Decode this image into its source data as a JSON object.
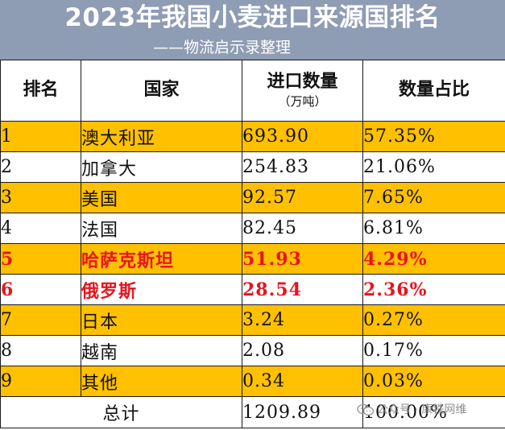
{
  "title": "2023年我国小麦进口来源国排名",
  "subtitle": "——物流启示录整理",
  "columns": {
    "rank": "排名",
    "country": "国家",
    "qty": "进口数量",
    "qty_unit": "（万吨）",
    "pct": "数量占比"
  },
  "rows": [
    {
      "rank": "1",
      "country": "澳大利亚",
      "qty": "693.90",
      "pct": "57.35%"
    },
    {
      "rank": "2",
      "country": "加拿大",
      "qty": "254.83",
      "pct": "21.06%"
    },
    {
      "rank": "3",
      "country": "美国",
      "qty": "92.57",
      "pct": "7.65%"
    },
    {
      "rank": "4",
      "country": "法国",
      "qty": "82.45",
      "pct": "6.81%"
    },
    {
      "rank": "5",
      "country": "哈萨克斯坦",
      "qty": "51.93",
      "pct": "4.29%"
    },
    {
      "rank": "6",
      "country": "俄罗斯",
      "qty": "28.54",
      "pct": "2.36%"
    },
    {
      "rank": "7",
      "country": "日本",
      "qty": "3.24",
      "pct": "0.27%"
    },
    {
      "rank": "8",
      "country": "越南",
      "qty": "2.08",
      "pct": "0.17%"
    },
    {
      "rank": "9",
      "country": "其他",
      "qty": "0.34",
      "pct": "0.03%"
    }
  ],
  "total": {
    "label": "总计",
    "qty": "1209.89",
    "pct": "100.00%"
  },
  "watermark": "公众号 · 康铁网维",
  "colors": {
    "header_bg": "#8e9cb4",
    "highlight_row": "#ffc000",
    "emphasis_text": "#e8141e"
  },
  "icons": {
    "watermark": "wechat-icon"
  }
}
